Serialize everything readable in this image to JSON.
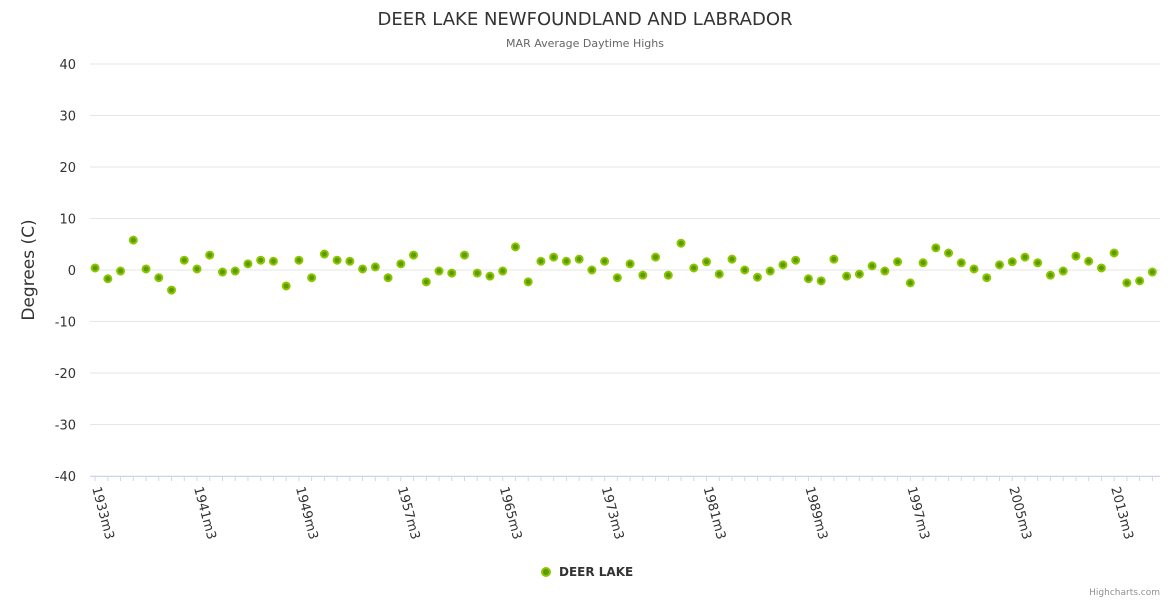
{
  "chart_data": {
    "type": "scatter",
    "title": "DEER LAKE NEWFOUNDLAND AND LABRADOR",
    "subtitle": "MAR Average Daytime Highs",
    "ylabel": "Degrees (C)",
    "xlabel": "",
    "ylim": [
      -40,
      40
    ],
    "yticks": [
      40,
      30,
      20,
      10,
      0,
      -10,
      -20,
      -30,
      -40
    ],
    "xlim": [
      1932.6,
      2016.6
    ],
    "xtick_labels": [
      "1933m3",
      "1941m3",
      "1949m3",
      "1957m3",
      "1965m3",
      "1973m3",
      "1981m3",
      "1989m3",
      "1997m3",
      "2005m3",
      "2013m3"
    ],
    "xtick_years": [
      1933,
      1941,
      1949,
      1957,
      1965,
      1973,
      1981,
      1989,
      1997,
      2005,
      2013
    ],
    "grid": true,
    "legend": "bottom-center",
    "series": [
      {
        "name": "DEER LAKE",
        "color": "#5b9a00",
        "x": [
          1933,
          1934,
          1935,
          1936,
          1937,
          1938,
          1939,
          1940,
          1941,
          1942,
          1943,
          1944,
          1945,
          1946,
          1947,
          1948,
          1949,
          1950,
          1951,
          1952,
          1953,
          1954,
          1955,
          1956,
          1957,
          1958,
          1959,
          1960,
          1961,
          1962,
          1963,
          1964,
          1965,
          1966,
          1967,
          1968,
          1969,
          1970,
          1971,
          1972,
          1973,
          1974,
          1975,
          1976,
          1977,
          1978,
          1979,
          1980,
          1981,
          1982,
          1983,
          1984,
          1985,
          1986,
          1987,
          1988,
          1989,
          1990,
          1991,
          1992,
          1993,
          1994,
          1995,
          1996,
          1997,
          1998,
          1999,
          2000,
          2001,
          2002,
          2003,
          2004,
          2005,
          2006,
          2007,
          2008,
          2009,
          2010,
          2011,
          2012,
          2013,
          2014,
          2015,
          2016
        ],
        "values": [
          0.4,
          -1.7,
          -0.2,
          5.8,
          0.2,
          -1.5,
          -3.9,
          1.9,
          0.2,
          2.9,
          -0.4,
          -0.2,
          1.2,
          1.9,
          1.7,
          -3.1,
          1.9,
          -1.5,
          3.1,
          1.9,
          1.7,
          0.2,
          0.6,
          -1.5,
          1.2,
          2.9,
          -2.3,
          -0.2,
          -0.6,
          2.9,
          -0.6,
          -1.2,
          -0.2,
          4.5,
          -2.3,
          1.7,
          2.5,
          1.7,
          2.1,
          0,
          1.7,
          -1.5,
          1.2,
          -1.0,
          2.5,
          -1.0,
          5.2,
          0.4,
          1.6,
          -0.8,
          2.1,
          0,
          -1.4,
          -0.2,
          1.0,
          1.9,
          -1.7,
          -2.1,
          2.1,
          -1.2,
          -0.8,
          0.8,
          -0.2,
          1.6,
          -2.5,
          1.4,
          4.3,
          3.3,
          1.4,
          0.2,
          -1.5,
          1.0,
          1.6,
          2.5,
          1.4,
          -1.0,
          -0.2,
          2.7,
          1.7,
          0.4,
          3.3,
          -2.5,
          -2.1,
          -0.4
        ]
      }
    ]
  },
  "credit": "Highcharts.com"
}
